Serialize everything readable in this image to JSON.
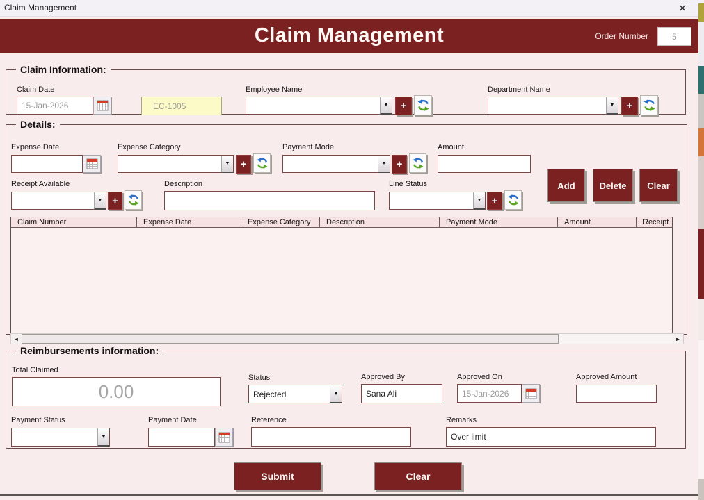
{
  "window": {
    "title": "Claim Management"
  },
  "icons": {
    "close": "✕",
    "plus": "+",
    "dropdown": "▼",
    "scroll_left": "◄",
    "scroll_right": "►"
  },
  "colors": {
    "banner": "#7B2122",
    "body_bg": "#F8ECEC",
    "button": "#7B2122",
    "yellow_field": "#FCFAC6"
  },
  "header": {
    "title": "Claim Management",
    "order_number_label": "Order Number",
    "order_number_value": "5"
  },
  "claim_info": {
    "legend": "Claim Information:",
    "claim_date": {
      "label": "Claim Date",
      "value": "15-Jan-2026"
    },
    "claim_code": {
      "value": "EC-1005"
    },
    "employee_name": {
      "label": "Employee Name",
      "value": ""
    },
    "department_name": {
      "label": "Department Name",
      "value": ""
    }
  },
  "details": {
    "legend": "Details:",
    "expense_date": {
      "label": "Expense Date",
      "value": ""
    },
    "expense_category": {
      "label": "Expense Category",
      "value": ""
    },
    "payment_mode": {
      "label": "Payment Mode",
      "value": ""
    },
    "amount": {
      "label": "Amount",
      "value": ""
    },
    "receipt_available": {
      "label": "Receipt Available",
      "value": ""
    },
    "description": {
      "label": "Description",
      "value": ""
    },
    "line_status": {
      "label": "Line Status",
      "value": ""
    },
    "buttons": {
      "add": "Add",
      "delete": "Delete",
      "clear": "Clear"
    },
    "table": {
      "columns": [
        "Claim Number",
        "Expense Date",
        "Expense Category",
        "Description",
        "Payment Mode",
        "Amount",
        "Receipt"
      ],
      "rows": []
    }
  },
  "reimbursements": {
    "legend": "Reimbursements information:",
    "total_claimed": {
      "label": "Total Claimed",
      "value": "0.00"
    },
    "status": {
      "label": "Status",
      "value": "Rejected"
    },
    "approved_by": {
      "label": "Approved By",
      "value": "Sana Ali"
    },
    "approved_on": {
      "label": "Approved On",
      "value": "15-Jan-2026"
    },
    "approved_amount": {
      "label": "Approved Amount",
      "value": ""
    },
    "payment_status": {
      "label": "Payment Status",
      "value": ""
    },
    "payment_date": {
      "label": "Payment Date",
      "value": ""
    },
    "reference": {
      "label": "Reference",
      "value": ""
    },
    "remarks": {
      "label": "Remarks",
      "value": "Over limit"
    }
  },
  "footer": {
    "submit_label": "Submit",
    "clear_label": "Clear"
  }
}
